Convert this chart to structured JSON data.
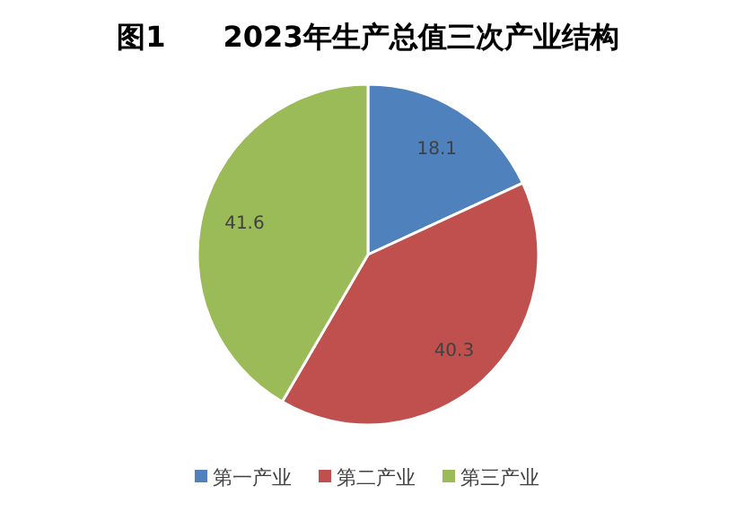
{
  "chart_data": {
    "type": "pie",
    "title": "图1　　2023年生产总值三次产业结构",
    "categories": [
      "第一产业",
      "第二产业",
      "第三产业"
    ],
    "values": [
      18.1,
      40.3,
      41.6
    ],
    "colors": [
      "#4f81bd",
      "#c0504d",
      "#9bbb59"
    ],
    "data_labels": true,
    "legend": "bottom"
  }
}
